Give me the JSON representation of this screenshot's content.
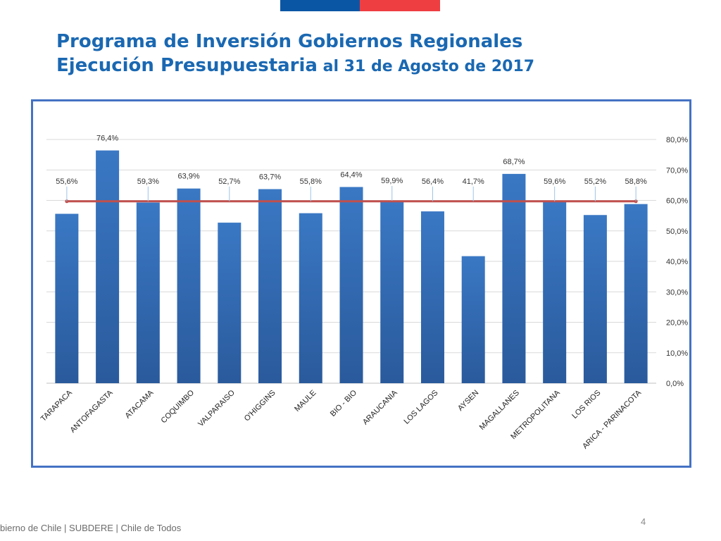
{
  "header": {
    "title_line1": "Programa de Inversión Gobiernos Regionales",
    "title_line2_bold": "Ejecución Presupuestaria",
    "title_line2_rest": " al 31 de Agosto de 2017"
  },
  "colors": {
    "bar": "#3a78c4",
    "bar_dark": "#2a5a9c",
    "average_line": "#c0504d",
    "frame": "#4472c4",
    "title": "#1a68b2",
    "flag_blue": "#0b56a4",
    "flag_red": "#ef3e42"
  },
  "chart_data": {
    "type": "bar",
    "title": "",
    "xlabel": "",
    "ylabel": "",
    "categories": [
      "TARAPACA",
      "ANTOFAGASTA",
      "ATACAMA",
      "COQUIMBO",
      "VALPARAISO",
      "O'HIGGINS",
      "MAULE",
      "BIO - BIO",
      "ARAUCANIA",
      "LOS LAGOS",
      "AYSEN",
      "MAGALLANES",
      "METROPOLITANA",
      "LOS RIOS",
      "ARICA - PARINACOTA"
    ],
    "values": [
      55.6,
      76.4,
      59.3,
      63.9,
      52.7,
      63.7,
      55.8,
      64.4,
      59.9,
      56.4,
      41.7,
      68.7,
      59.6,
      55.2,
      58.8
    ],
    "data_labels": [
      "55,6%",
      "76,4%",
      "59,3%",
      "63,9%",
      "52,7%",
      "63,7%",
      "55,8%",
      "64,4%",
      "59,9%",
      "56,4%",
      "41,7%",
      "68,7%",
      "59,6%",
      "55,2%",
      "58,8%"
    ],
    "reference_line": {
      "value": 59.7
    },
    "ylim": [
      0,
      80
    ],
    "y_ticks": [
      "0,0%",
      "10,0%",
      "20,0%",
      "30,0%",
      "40,0%",
      "50,0%",
      "60,0%",
      "70,0%",
      "80,0%"
    ],
    "y_axis_position": "right",
    "grid": true
  },
  "footer": {
    "text": "bierno de Chile | SUBDERE | Chile de Todos",
    "page_number": "4"
  }
}
